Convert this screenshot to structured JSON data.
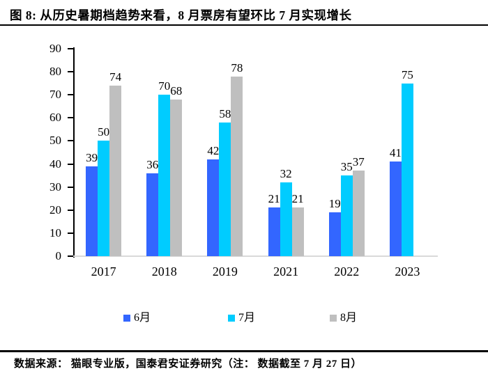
{
  "header": {
    "title": "图 8:  从历史暑期档趋势来看，8 月票房有望环比 7 月实现增长"
  },
  "footer": {
    "text": "数据来源：  猫眼专业版，国泰君安证券研究（注：  数据截至 7 月 27 日）"
  },
  "chart_data": {
    "type": "bar",
    "categories": [
      "2017",
      "2018",
      "2019",
      "2021",
      "2022",
      "2023"
    ],
    "series": [
      {
        "name": "6月",
        "color": "#3366FF",
        "values": [
          39,
          36,
          42,
          21,
          19,
          41
        ]
      },
      {
        "name": "7月",
        "color": "#00CCFF",
        "values": [
          50,
          70,
          58,
          32,
          35,
          75
        ]
      },
      {
        "name": "8月",
        "color": "#BFBFBF",
        "values": [
          74,
          68,
          78,
          21,
          37,
          null
        ]
      }
    ],
    "ylim": [
      0,
      90
    ],
    "ytick_step": 10,
    "grid": false,
    "data_labels": true,
    "legend_position": "bottom",
    "axis_color": "#000000",
    "baseline_color": "#D9D9D9"
  }
}
